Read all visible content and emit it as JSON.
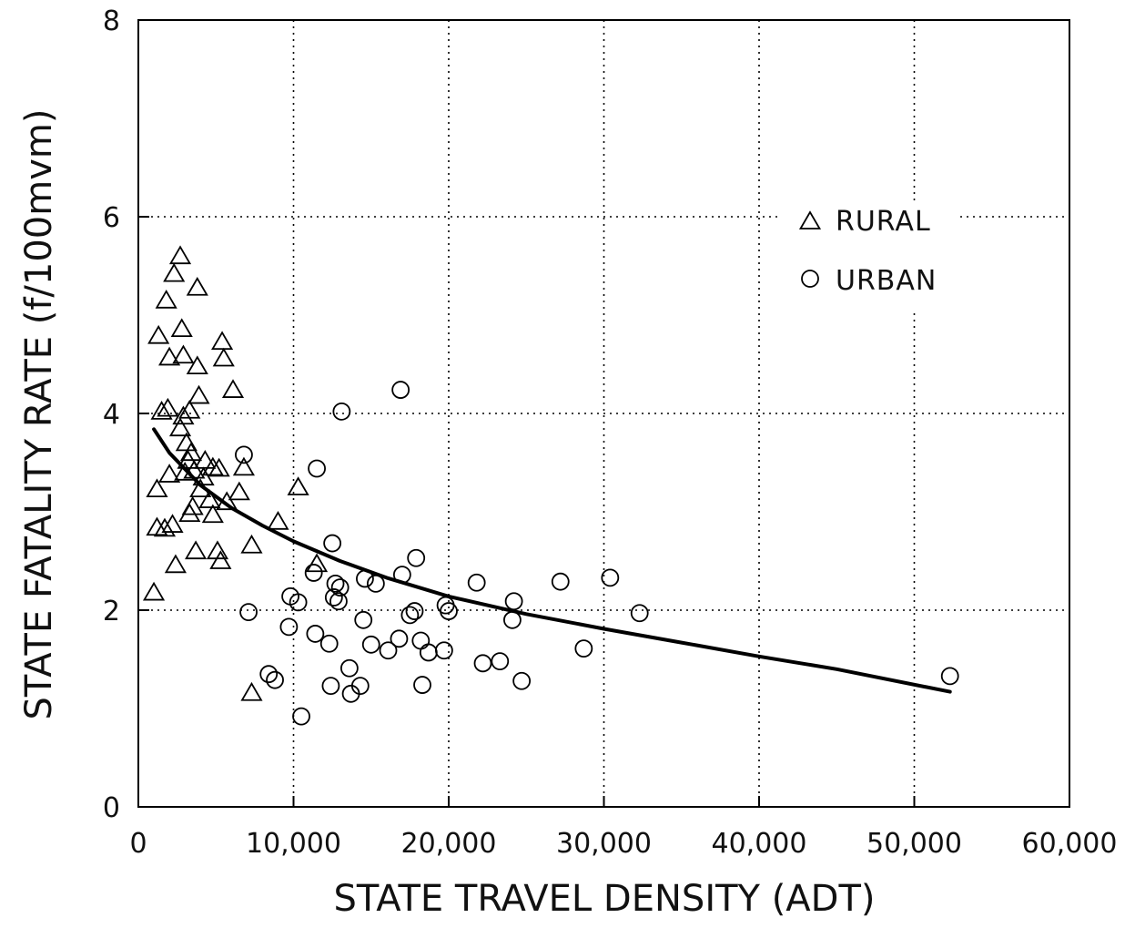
{
  "chart_data": {
    "type": "scatter",
    "xlabel": "STATE TRAVEL DENSITY (ADT)",
    "ylabel": "STATE FATALITY RATE (f/100mvm)",
    "xlim": [
      0,
      60000
    ],
    "ylim": [
      0,
      8
    ],
    "x_ticks": [
      0,
      10000,
      20000,
      30000,
      40000,
      50000,
      60000
    ],
    "x_tick_labels": [
      "0",
      "10,000",
      "20,000",
      "30,000",
      "40,000",
      "50,000",
      "60,000"
    ],
    "y_ticks": [
      0,
      2,
      4,
      6,
      8
    ],
    "y_tick_labels": [
      "0",
      "2",
      "4",
      "6",
      "8"
    ],
    "grid": "dotted",
    "legend_position": "upper-right",
    "series": [
      {
        "name": "RURAL",
        "marker": "triangle",
        "points": [
          [
            1000,
            2.18
          ],
          [
            1200,
            2.84
          ],
          [
            1200,
            3.23
          ],
          [
            1300,
            4.79
          ],
          [
            1500,
            4.02
          ],
          [
            1700,
            2.83
          ],
          [
            1800,
            5.15
          ],
          [
            1900,
            4.05
          ],
          [
            2000,
            4.57
          ],
          [
            2000,
            3.38
          ],
          [
            2200,
            2.87
          ],
          [
            2300,
            5.42
          ],
          [
            2400,
            2.46
          ],
          [
            2700,
            5.6
          ],
          [
            2700,
            3.85
          ],
          [
            2800,
            4.86
          ],
          [
            2900,
            3.97
          ],
          [
            2900,
            4.59
          ],
          [
            3000,
            3.4
          ],
          [
            3100,
            3.7
          ],
          [
            3200,
            3.52
          ],
          [
            3300,
            2.98
          ],
          [
            3300,
            4.03
          ],
          [
            3400,
            3.6
          ],
          [
            3500,
            3.05
          ],
          [
            3600,
            3.42
          ],
          [
            3700,
            2.6
          ],
          [
            3800,
            5.28
          ],
          [
            3800,
            4.48
          ],
          [
            3900,
            4.18
          ],
          [
            4000,
            3.23
          ],
          [
            4200,
            3.35
          ],
          [
            4300,
            3.52
          ],
          [
            4600,
            3.12
          ],
          [
            4800,
            3.45
          ],
          [
            4800,
            2.97
          ],
          [
            5100,
            2.6
          ],
          [
            5200,
            3.44
          ],
          [
            5300,
            2.5
          ],
          [
            5400,
            4.73
          ],
          [
            5500,
            4.56
          ],
          [
            5700,
            3.1
          ],
          [
            6100,
            4.24
          ],
          [
            6500,
            3.2
          ],
          [
            6800,
            3.45
          ],
          [
            7300,
            2.66
          ],
          [
            7300,
            1.16
          ],
          [
            9000,
            2.9
          ],
          [
            10300,
            3.25
          ],
          [
            11500,
            2.47
          ]
        ]
      },
      {
        "name": "URBAN",
        "marker": "circle",
        "points": [
          [
            6800,
            3.58
          ],
          [
            7100,
            1.98
          ],
          [
            8400,
            1.35
          ],
          [
            8800,
            1.29
          ],
          [
            9700,
            1.83
          ],
          [
            9800,
            2.14
          ],
          [
            10300,
            2.08
          ],
          [
            10500,
            0.92
          ],
          [
            11300,
            2.38
          ],
          [
            11400,
            1.76
          ],
          [
            11500,
            3.44
          ],
          [
            12300,
            1.66
          ],
          [
            12400,
            1.23
          ],
          [
            12500,
            2.68
          ],
          [
            12600,
            2.13
          ],
          [
            12700,
            2.27
          ],
          [
            12900,
            2.09
          ],
          [
            13000,
            2.23
          ],
          [
            13100,
            4.02
          ],
          [
            13600,
            1.41
          ],
          [
            13700,
            1.15
          ],
          [
            14300,
            1.23
          ],
          [
            14500,
            1.9
          ],
          [
            14600,
            2.32
          ],
          [
            15000,
            1.65
          ],
          [
            15300,
            2.27
          ],
          [
            16100,
            1.59
          ],
          [
            16800,
            1.71
          ],
          [
            16900,
            4.24
          ],
          [
            17000,
            2.36
          ],
          [
            17500,
            1.95
          ],
          [
            17800,
            1.99
          ],
          [
            17900,
            2.53
          ],
          [
            18200,
            1.69
          ],
          [
            18300,
            1.24
          ],
          [
            18700,
            1.57
          ],
          [
            19700,
            1.59
          ],
          [
            19800,
            2.05
          ],
          [
            20000,
            1.99
          ],
          [
            21800,
            2.28
          ],
          [
            22200,
            1.46
          ],
          [
            23300,
            1.48
          ],
          [
            24100,
            1.9
          ],
          [
            24200,
            2.09
          ],
          [
            24700,
            1.28
          ],
          [
            27200,
            2.29
          ],
          [
            28700,
            1.61
          ],
          [
            30400,
            2.33
          ],
          [
            32300,
            1.97
          ],
          [
            52300,
            1.33
          ]
        ]
      }
    ],
    "fit_curve": {
      "type": "power",
      "points": [
        [
          1000,
          3.84
        ],
        [
          2000,
          3.6
        ],
        [
          4000,
          3.27
        ],
        [
          6000,
          3.04
        ],
        [
          8000,
          2.86
        ],
        [
          10000,
          2.7
        ],
        [
          13000,
          2.5
        ],
        [
          16000,
          2.33
        ],
        [
          20000,
          2.14
        ],
        [
          25000,
          1.96
        ],
        [
          30000,
          1.81
        ],
        [
          35000,
          1.67
        ],
        [
          40000,
          1.53
        ],
        [
          45000,
          1.4
        ],
        [
          52300,
          1.17
        ]
      ]
    }
  }
}
